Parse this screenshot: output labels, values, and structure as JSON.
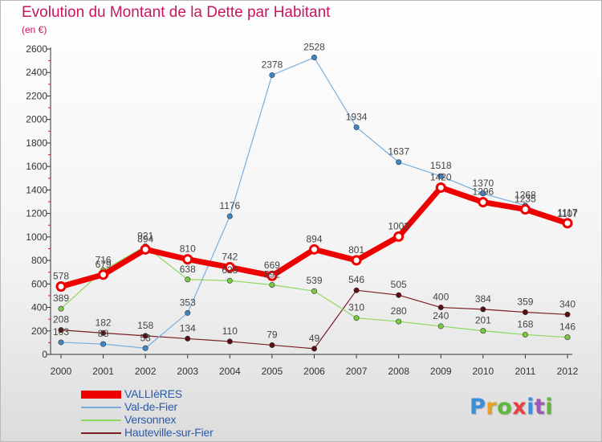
{
  "header": {
    "title": "Evolution du Montant de la Dette par Habitant",
    "subtitle": "(en €)"
  },
  "logo": {
    "text": "Proxiti",
    "letter_colors": [
      "#3a8fd8",
      "#e8a020",
      "#5fb83a",
      "#e84040",
      "#3a8fd8",
      "#9b59b6",
      "#5fb83a"
    ]
  },
  "chart_data": {
    "type": "line",
    "x": [
      "2000",
      "2001",
      "2002",
      "2003",
      "2004",
      "2005",
      "2006",
      "2007",
      "2008",
      "2009",
      "2010",
      "2011",
      "2012"
    ],
    "ylim": [
      0,
      2600
    ],
    "yticks": [
      0,
      200,
      400,
      600,
      800,
      1000,
      1200,
      1400,
      1600,
      1800,
      2000,
      2200,
      2400,
      2600
    ],
    "grid": false,
    "legend_position": "bottom-left",
    "series": [
      {
        "name": "Hauteville-sur-Fier",
        "color": "#7a1f24",
        "marker_color": "#5a0d12",
        "values": [
          208,
          182,
          158,
          134,
          110,
          79,
          49,
          546,
          505,
          400,
          384,
          359,
          340
        ]
      },
      {
        "name": "Versonnex",
        "color": "#8fd860",
        "marker_color": "#78cc40",
        "values": [
          389,
          716,
          921,
          638,
          628,
          592,
          539,
          310,
          280,
          240,
          201,
          168,
          146
        ]
      },
      {
        "name": "Val-de-Fier",
        "color": "#7aaedc",
        "marker_color": "#3d87c9",
        "values": [
          103,
          88,
          53,
          353,
          1176,
          2378,
          2528,
          1934,
          1637,
          1518,
          1370,
          1268,
          1107
        ]
      },
      {
        "name": "VALLIèRES",
        "color": "#ee0000",
        "marker_color": "#ee0000",
        "values": [
          578,
          679,
          894,
          810,
          742,
          669,
          894,
          801,
          1003,
          1420,
          1296,
          1235,
          1117
        ]
      }
    ]
  }
}
